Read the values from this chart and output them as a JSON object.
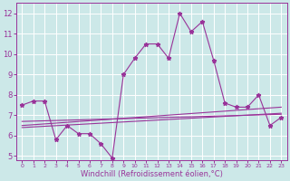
{
  "title": "",
  "xlabel": "Windchill (Refroidissement éolien,°C)",
  "bg_color": "#cce8e8",
  "grid_color": "#ffffff",
  "line_color": "#993399",
  "xlim": [
    -0.5,
    23.5
  ],
  "ylim": [
    4.8,
    12.5
  ],
  "xticks": [
    0,
    1,
    2,
    3,
    4,
    5,
    6,
    7,
    8,
    9,
    10,
    11,
    12,
    13,
    14,
    15,
    16,
    17,
    18,
    19,
    20,
    21,
    22,
    23
  ],
  "yticks": [
    5,
    6,
    7,
    8,
    9,
    10,
    11,
    12
  ],
  "series1_x": [
    0,
    1,
    2,
    3,
    4,
    5,
    6,
    7,
    8,
    9,
    10,
    11,
    12,
    13,
    14,
    15,
    16,
    17,
    18,
    19,
    20,
    21,
    22,
    23
  ],
  "series1_y": [
    7.5,
    7.7,
    7.7,
    5.8,
    6.5,
    6.1,
    6.1,
    5.6,
    4.9,
    9.0,
    9.8,
    10.5,
    10.5,
    9.8,
    12.0,
    11.1,
    11.6,
    9.7,
    7.6,
    7.4,
    7.4,
    8.0,
    6.5,
    6.9
  ],
  "series2_x": [
    0,
    23
  ],
  "series2_y": [
    6.4,
    7.1
  ],
  "series3_x": [
    0,
    23
  ],
  "series3_y": [
    6.5,
    7.4
  ],
  "series4_x": [
    0,
    23
  ],
  "series4_y": [
    6.7,
    7.05
  ],
  "marker": "*",
  "marker_size": 3.5,
  "linewidth": 0.8,
  "xlabel_fontsize": 6,
  "tick_fontsize": 5.5
}
